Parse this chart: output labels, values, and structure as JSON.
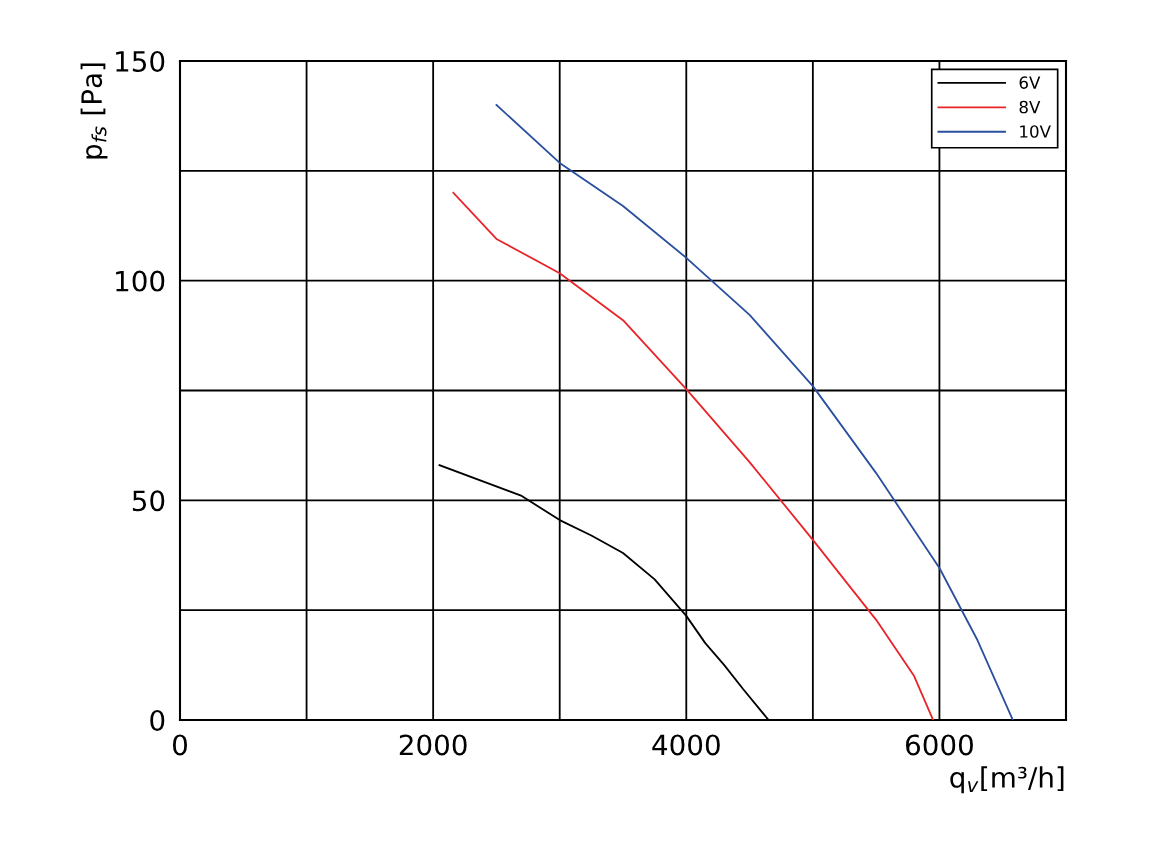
{
  "chart_data": {
    "type": "line",
    "xlabel": "q$_{v}$[m³/h]",
    "ylabel": "p$_{fs}$ [Pa]",
    "xlim": [
      0,
      7000
    ],
    "ylim": [
      0,
      150
    ],
    "xticks": [
      0,
      {
        "value": 1000,
        "label": null
      },
      2000,
      {
        "value": 3000,
        "label": null
      },
      4000,
      {
        "value": 5000,
        "label": null
      },
      6000,
      {
        "value": 7000,
        "label": null
      }
    ],
    "yticks": [
      0,
      {
        "value": 25,
        "label": null
      },
      50,
      {
        "value": 75,
        "label": null
      },
      100,
      {
        "value": 125,
        "label": null
      },
      150
    ],
    "grid": true,
    "legend": "top right",
    "marker": "none",
    "line_style": "solid",
    "series": [
      {
        "name": "6V",
        "color": "#000000",
        "x": [
          2050,
          2700,
          3000,
          3250,
          3500,
          3750,
          4000,
          4150,
          4300,
          4450,
          4650
        ],
        "values": [
          58,
          51,
          45.5,
          42,
          38,
          32,
          23.7,
          17.5,
          12.5,
          7,
          0
        ]
      },
      {
        "name": "8V",
        "color": "#e8242a",
        "x": [
          2160,
          2500,
          3000,
          3500,
          4000,
          4500,
          5000,
          5500,
          5800,
          5950
        ],
        "values": [
          120,
          109.5,
          101.7,
          91,
          75.3,
          58.7,
          41,
          22.8,
          10,
          0
        ]
      },
      {
        "name": "10V",
        "color": "#2a4f9e",
        "x": [
          2500,
          3000,
          3500,
          4000,
          4500,
          5000,
          5500,
          6000,
          6300,
          6580
        ],
        "values": [
          140,
          126.8,
          117,
          105.2,
          92.2,
          76,
          56.2,
          34.6,
          18.2,
          0
        ]
      }
    ]
  }
}
